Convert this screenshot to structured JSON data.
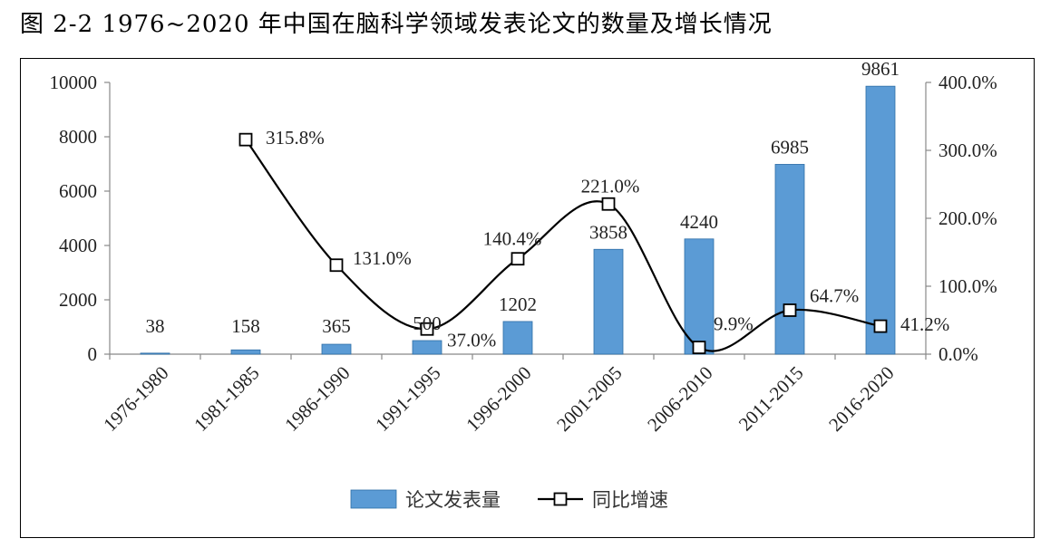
{
  "figure": {
    "title": "图 2-2 1976~2020 年中国在脑科学领域发表论文的数量及增长情况"
  },
  "chart_data": {
    "type": "bar",
    "categories": [
      "1976-1980",
      "1981-1985",
      "1986-1990",
      "1991-1995",
      "1996-2000",
      "2001-2005",
      "2006-2010",
      "2011-2015",
      "2016-2020"
    ],
    "series": [
      {
        "name": "论文发表量",
        "type": "bar",
        "axis": "left",
        "color": "#5b9bd5",
        "values": [
          38,
          158,
          365,
          500,
          1202,
          3858,
          4240,
          6985,
          9861
        ],
        "labels": [
          "38",
          "158",
          "365",
          "500",
          "1202",
          "3858",
          "4240",
          "6985",
          "9861"
        ]
      },
      {
        "name": "同比增速",
        "type": "line",
        "axis": "right",
        "color": "#000000",
        "marker": "square",
        "values": [
          null,
          315.8,
          131.0,
          37.0,
          140.4,
          221.0,
          9.9,
          64.7,
          41.2
        ],
        "labels": [
          null,
          "315.8%",
          "131.0%",
          "37.0%",
          "140.4%",
          "221.0%",
          "9.9%",
          "64.7%",
          "41.2%"
        ]
      }
    ],
    "y_left": {
      "min": 0,
      "max": 10000,
      "ticks": [
        "0",
        "2000",
        "4000",
        "6000",
        "8000",
        "10000"
      ]
    },
    "y_right": {
      "min": 0,
      "max": 400,
      "ticks": [
        "0.0%",
        "100.0%",
        "200.0%",
        "300.0%",
        "400.0%"
      ]
    },
    "grid": false,
    "legend_position": "bottom-center"
  }
}
